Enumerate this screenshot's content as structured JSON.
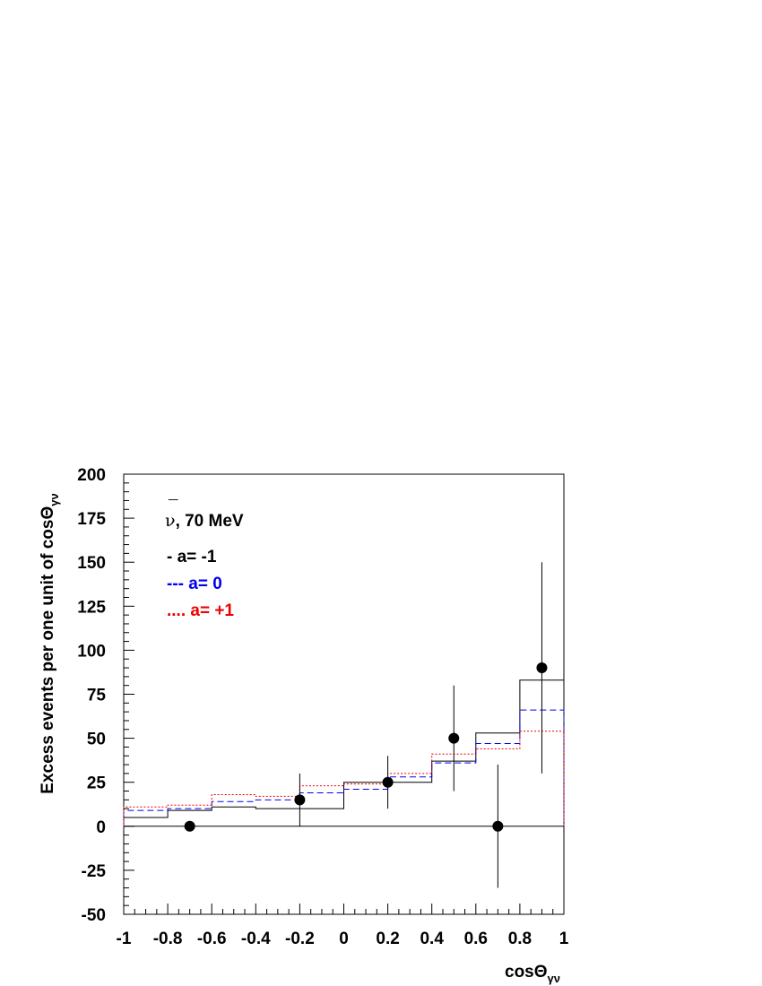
{
  "chart_data": {
    "type": "line",
    "xlabel": "cosΘ",
    "xlabel_sub": "γν",
    "ylabel": "Excess events per one unit of cosΘ",
    "ylabel_sub": "γν",
    "xlim": [
      -1,
      1
    ],
    "ylim": [
      -50,
      200
    ],
    "grid": false,
    "x_ticks": [
      "-1",
      "-0.8",
      "-0.6",
      "-0.4",
      "-0.2",
      "0",
      "0.2",
      "0.4",
      "0.6",
      "0.8",
      "1"
    ],
    "y_ticks": [
      "-50",
      "-25",
      "0",
      "25",
      "50",
      "75",
      "100",
      "125",
      "150",
      "175",
      "200"
    ],
    "annotation": {
      "nu_symbol": "ν",
      "nu_bar": "¯",
      "text": ", 70 MeV"
    },
    "legend": {
      "placement": "top-left",
      "entries": [
        {
          "label": "- a= -1",
          "color": "#000000"
        },
        {
          "label": "--- a= 0",
          "color": "#0000ee"
        },
        {
          "label": ".... a= +1",
          "color": "#ee0000"
        }
      ]
    },
    "bin_edges": [
      -1,
      -0.8,
      -0.6,
      -0.4,
      -0.2,
      0,
      0.2,
      0.4,
      0.6,
      0.8,
      1
    ],
    "series": [
      {
        "name": "a= -1",
        "style": "solid",
        "color": "#000000",
        "values": [
          5,
          9,
          11,
          10,
          10,
          25,
          25,
          37,
          53,
          83
        ]
      },
      {
        "name": "a= 0",
        "style": "dashed",
        "color": "#0000ee",
        "values": [
          9,
          10,
          14,
          15,
          19,
          21,
          28,
          36,
          47,
          66
        ]
      },
      {
        "name": "a= +1",
        "style": "dotted",
        "color": "#ee0000",
        "values": [
          11,
          12,
          18,
          17,
          23,
          24,
          30,
          41,
          44,
          54
        ]
      }
    ],
    "data_points": [
      {
        "x": -0.7,
        "y": 0,
        "err": 0
      },
      {
        "x": -0.2,
        "y": 15,
        "err": 15
      },
      {
        "x": 0.2,
        "y": 25,
        "err": 15
      },
      {
        "x": 0.5,
        "y": 50,
        "err": 30
      },
      {
        "x": 0.7,
        "y": 0,
        "err": 35
      },
      {
        "x": 0.9,
        "y": 90,
        "err": 60
      }
    ],
    "reference_line_y": 0
  }
}
